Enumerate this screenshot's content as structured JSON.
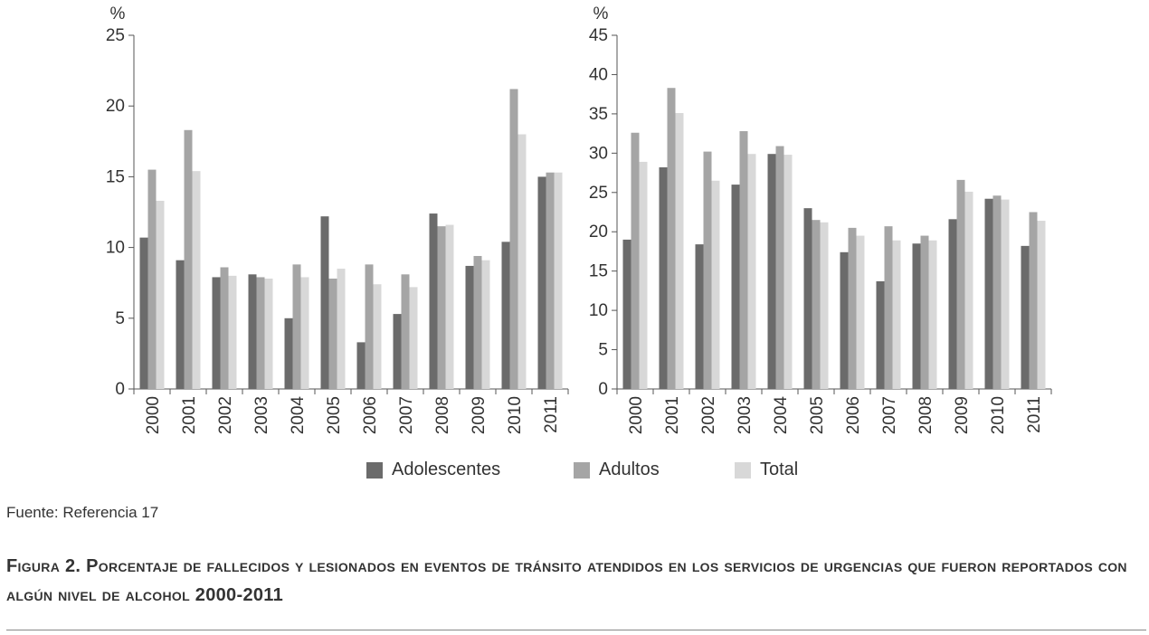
{
  "chart_data": [
    {
      "type": "bar",
      "ylabel": "%",
      "ylim": [
        0,
        25
      ],
      "yticks": [
        0,
        5,
        10,
        15,
        20,
        25
      ],
      "categories": [
        "2000",
        "2001",
        "2002",
        "2003",
        "2004",
        "2005",
        "2006",
        "2007",
        "2008",
        "2009",
        "2010",
        "2011"
      ],
      "series": [
        {
          "name": "Adolescentes",
          "values": [
            10.7,
            9.1,
            7.9,
            8.1,
            5.0,
            12.2,
            3.3,
            5.3,
            12.4,
            8.7,
            10.4,
            15.0
          ]
        },
        {
          "name": "Adultos",
          "values": [
            15.5,
            18.3,
            8.6,
            7.9,
            8.8,
            7.8,
            8.8,
            8.1,
            11.5,
            9.4,
            21.2,
            15.3
          ]
        },
        {
          "name": "Total",
          "values": [
            13.3,
            15.4,
            8.0,
            7.8,
            7.9,
            8.5,
            7.4,
            7.2,
            11.6,
            9.1,
            18.0,
            15.3
          ]
        }
      ]
    },
    {
      "type": "bar",
      "ylabel": "%",
      "ylim": [
        0,
        45
      ],
      "yticks": [
        0,
        5,
        10,
        15,
        20,
        25,
        30,
        35,
        40,
        45
      ],
      "categories": [
        "2000",
        "2001",
        "2002",
        "2003",
        "2004",
        "2005",
        "2006",
        "2007",
        "2008",
        "2009",
        "2010",
        "2011"
      ],
      "series": [
        {
          "name": "Adolescentes",
          "values": [
            19.0,
            28.2,
            18.4,
            26.0,
            29.9,
            23.0,
            17.4,
            13.7,
            18.5,
            21.6,
            24.2,
            18.2
          ]
        },
        {
          "name": "Adultos",
          "values": [
            32.6,
            38.3,
            30.2,
            32.8,
            30.9,
            21.5,
            20.5,
            20.7,
            19.5,
            26.6,
            24.6,
            22.5
          ]
        },
        {
          "name": "Total",
          "values": [
            28.9,
            35.1,
            26.5,
            29.9,
            29.8,
            21.2,
            19.5,
            18.9,
            18.9,
            25.1,
            24.1,
            21.4
          ]
        }
      ]
    }
  ],
  "legend": [
    {
      "label": "Adolescentes",
      "color": "#6b6b6b"
    },
    {
      "label": "Adultos",
      "color": "#a5a5a5"
    },
    {
      "label": "Total",
      "color": "#d8d8d8"
    }
  ],
  "source": "Fuente: Referencia 17",
  "caption": {
    "label": "Figura 2.",
    "text": "Porcentaje de fallecidos y lesionados en eventos de tránsito atendidos en los servicios de urgencias que fueron reportados con algún nivel de alcohol 2000-2011"
  }
}
